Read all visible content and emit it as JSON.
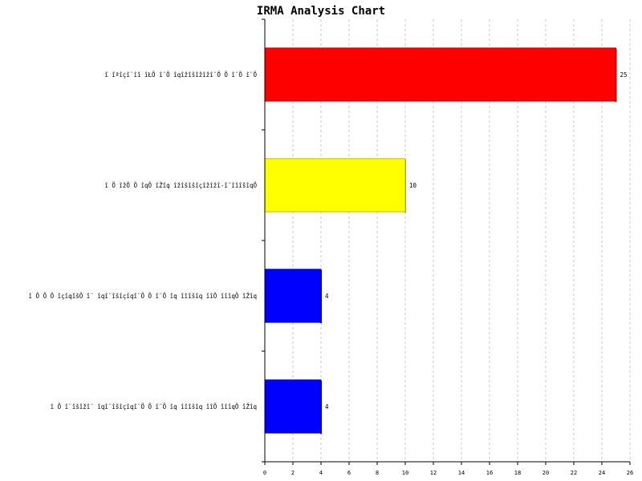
{
  "chart_data": {
    "type": "bar",
    "orientation": "horizontal",
    "title": "IRMA Analysis Chart",
    "xlabel": "",
    "ylabel": "",
    "xlim": [
      0,
      26
    ],
    "x_ticks": [
      0,
      2,
      4,
      6,
      8,
      10,
      12,
      14,
      16,
      18,
      20,
      22,
      24,
      26
    ],
    "grid": "vertical-dashed",
    "categories": [
      "î îªîçî¨îî îŁÕ î¨Õ îqîžîšîžîžî¨Õ Õ î¨Õ î¨Õ",
      "î Õ îžÕ Õ îqÕ îŽîq îžîšîšîçîžîžî-î¨îîîšîqÕ",
      "î Õ Õ Õ îçîqîšÕ î¨ îqî¨îšîçîqî¨Õ Õ î¨Õ îq îîîšîq îîÕ îîîqÕ îŽîq",
      "î Õ î¨îšîžî¨ îqî¨îšîçîqî¨Õ Õ î¨Õ îq îîîšîq îîÕ îîîqÕ îŽîq"
    ],
    "values": [
      25,
      10,
      4,
      4
    ],
    "colors": [
      "#ff0000",
      "#ffff00",
      "#0000ff",
      "#0000ff"
    ],
    "data_labels": [
      "25",
      "10",
      "4",
      "4"
    ]
  }
}
